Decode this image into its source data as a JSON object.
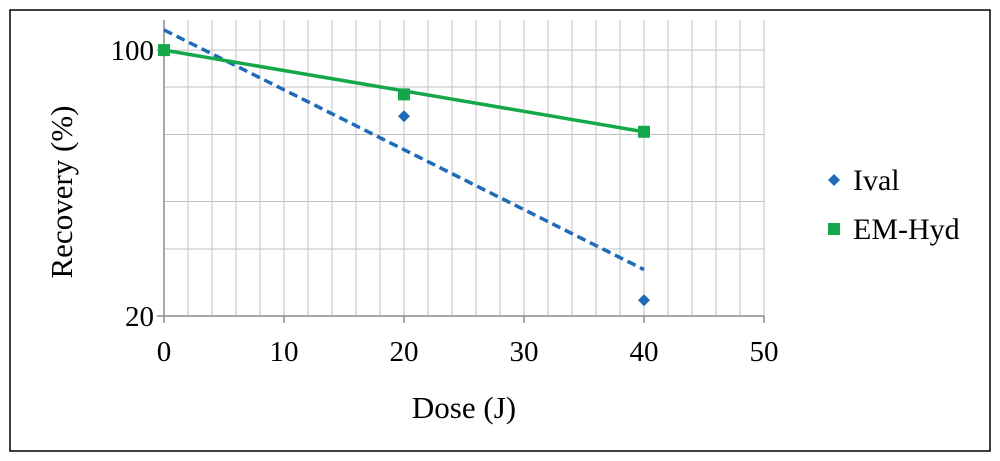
{
  "chart_data": {
    "type": "scatter",
    "title": "",
    "xlabel": "Dose (J)",
    "ylabel": "Recovery (%)",
    "xlim": [
      0,
      50
    ],
    "ylim": [
      20,
      100
    ],
    "y_scale": "log",
    "x_ticks": [
      0,
      10,
      20,
      30,
      40,
      50
    ],
    "x_tick_labels": [
      "0",
      "10",
      "20",
      "30",
      "40",
      "50"
    ],
    "y_tick_labels": [
      {
        "value": 100,
        "label": "100"
      },
      {
        "value": 20,
        "label": "20"
      }
    ],
    "grid": true,
    "legend_position": "right",
    "series": [
      {
        "name": "Ival",
        "marker": "diamond",
        "color": "#1F6BB8",
        "x": [
          0,
          20,
          40
        ],
        "y": [
          100,
          67,
          22
        ],
        "trendline": {
          "style": "dashed",
          "type": "exponential",
          "x": [
            0,
            40
          ],
          "y": [
            113,
            26.5
          ]
        }
      },
      {
        "name": "EM-Hyd",
        "marker": "square",
        "color": "#15A84A",
        "x": [
          0,
          20,
          40
        ],
        "y": [
          100,
          76.5,
          61
        ],
        "trendline": {
          "style": "solid",
          "type": "exponential",
          "x": [
            0,
            40
          ],
          "y": [
            100,
            61
          ]
        }
      }
    ]
  }
}
